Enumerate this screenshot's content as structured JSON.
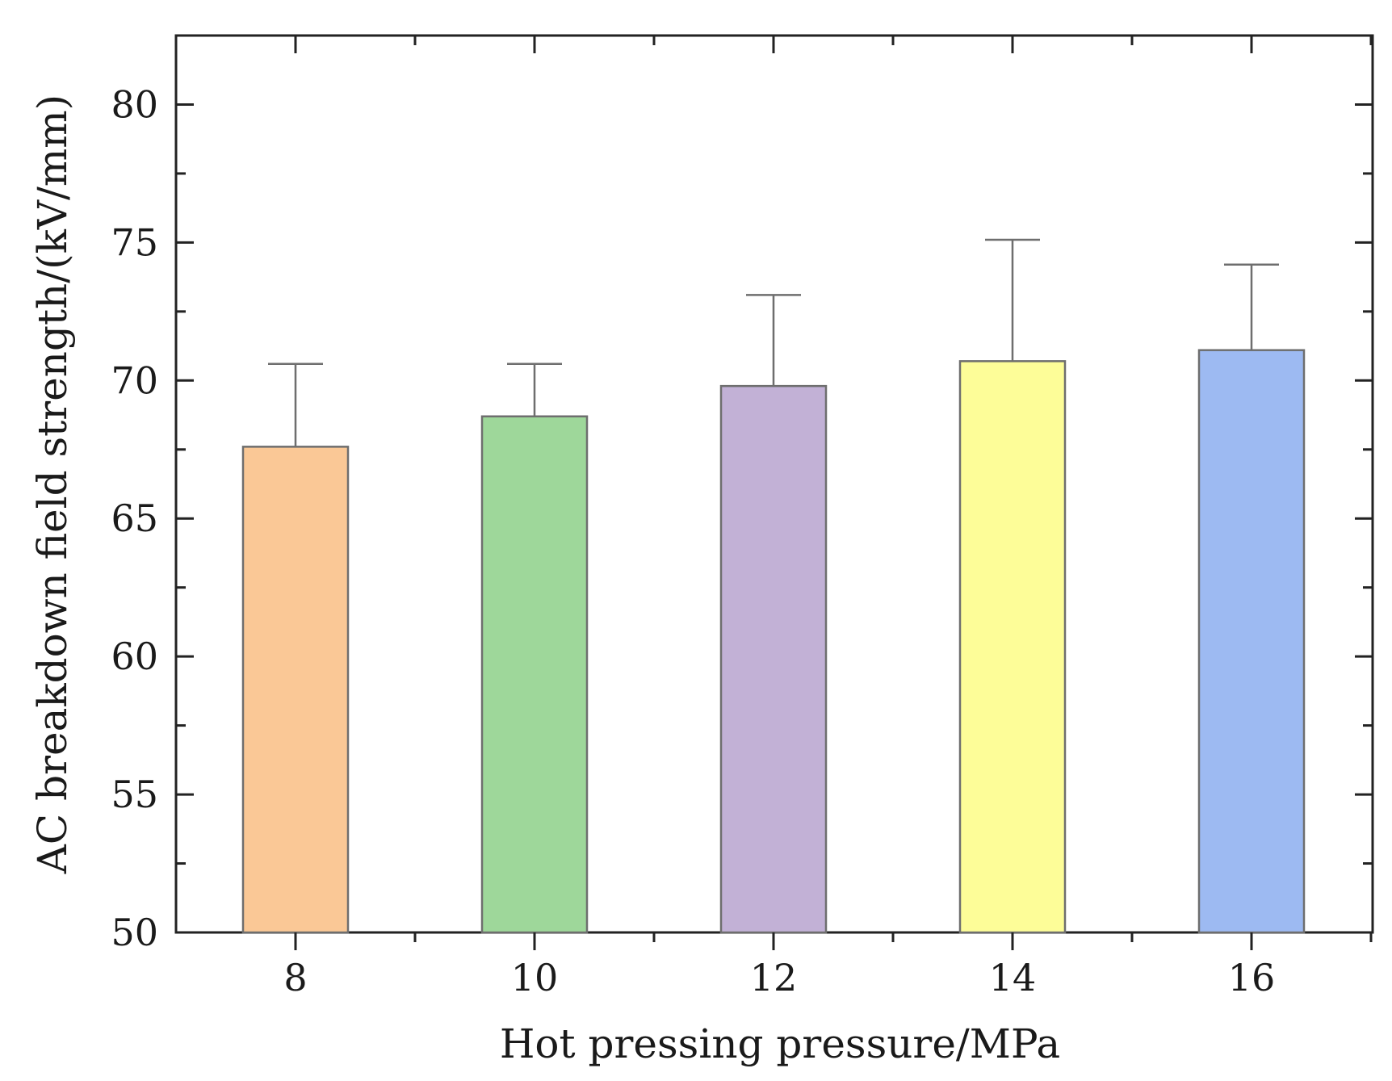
{
  "chart_data": {
    "type": "bar",
    "title": "",
    "xlabel": "Hot pressing pressure/MPa",
    "ylabel": "AC breakdown field strength/(kV/mm)",
    "categories": [
      "8",
      "10",
      "12",
      "14",
      "16"
    ],
    "values": [
      67.6,
      68.7,
      69.8,
      70.7,
      71.1
    ],
    "errors": [
      3.0,
      1.9,
      3.3,
      4.4,
      3.1
    ],
    "colors": [
      "#FAC896",
      "#9ED79A",
      "#C2B1D6",
      "#FDFD98",
      "#9DBAF2"
    ],
    "ylim": [
      50,
      82.5
    ],
    "yticks": [
      "50",
      "55",
      "60",
      "65",
      "70",
      "75",
      "80"
    ],
    "grid": false,
    "legend": "none"
  }
}
